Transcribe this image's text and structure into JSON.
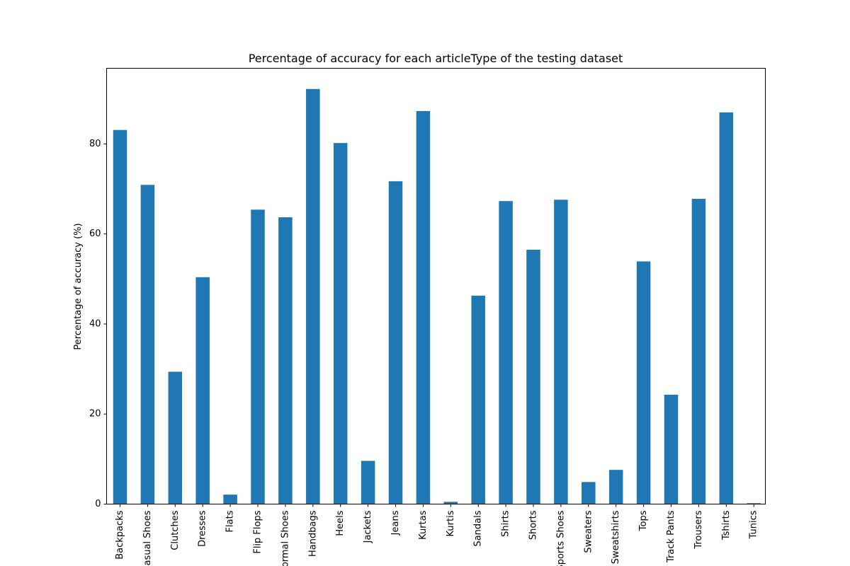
{
  "chart_data": {
    "type": "bar",
    "title": "Percentage of accuracy for each articleType of the testing dataset",
    "xlabel": "",
    "ylabel": "Percentage of accuracy (%)",
    "categories": [
      "Backpacks",
      "Casual Shoes",
      "Clutches",
      "Dresses",
      "Flats",
      "Flip Flops",
      "Formal Shoes",
      "Handbags",
      "Heels",
      "Jackets",
      "Jeans",
      "Kurtas",
      "Kurtis",
      "Sandals",
      "Shirts",
      "Shorts",
      "Sports Shoes",
      "Sweaters",
      "Sweatshirts",
      "Tops",
      "Track Pants",
      "Trousers",
      "Tshirts",
      "Tunics"
    ],
    "values": [
      83.1,
      70.9,
      29.4,
      50.4,
      2.1,
      65.4,
      63.7,
      92.2,
      80.2,
      9.6,
      71.7,
      87.3,
      0.5,
      46.3,
      67.3,
      56.5,
      67.6,
      4.9,
      7.6,
      53.9,
      24.3,
      67.8,
      87.0,
      0.2
    ],
    "ylim": [
      0,
      96.8
    ],
    "yticks": [
      0,
      20,
      40,
      60,
      80
    ],
    "bar_color": "#1f77b4",
    "grid": false,
    "legend": "none"
  }
}
